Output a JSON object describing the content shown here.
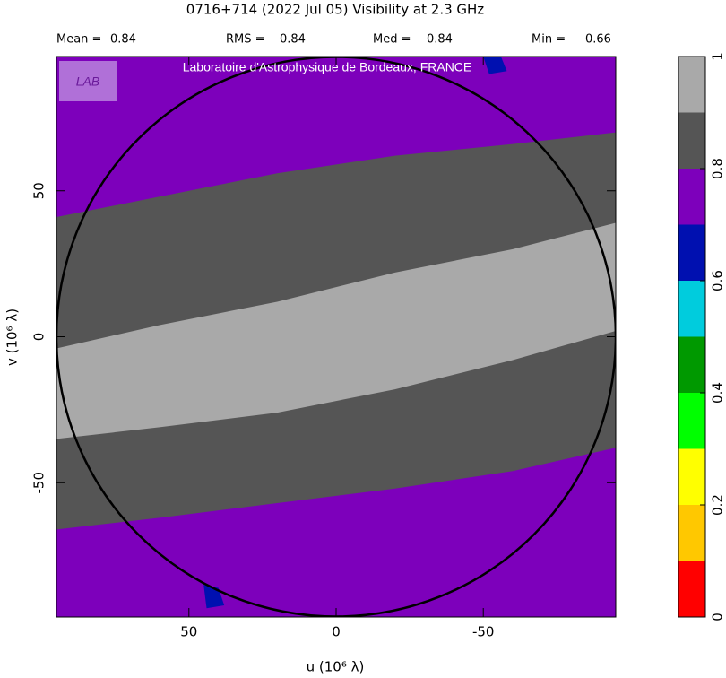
{
  "chart_data": {
    "type": "contour",
    "title": "0716+714   (2022 Jul 05)   Visibility at  2.3 GHz",
    "stats": [
      {
        "label": "Mean =",
        "value": 0.84
      },
      {
        "label": "RMS =",
        "value": 0.84
      },
      {
        "label": "Med =",
        "value": 0.84
      },
      {
        "label": "Min =",
        "value": 0.66
      }
    ],
    "watermark": "Laboratoire d'Astrophysique de Bordeaux, FRANCE",
    "logo": "LAB",
    "xlabel": "u  (10⁶ λ)",
    "ylabel": "v  (10⁶ λ)",
    "xlim": [
      95,
      -95
    ],
    "ylim": [
      -96,
      96
    ],
    "xticks": [
      50,
      0,
      -50
    ],
    "yticks": [
      -50,
      0,
      50
    ],
    "background_value": 0.75,
    "regions": [
      {
        "value": 0.85,
        "points": [
          [
            95,
            41
          ],
          [
            60,
            48
          ],
          [
            20,
            56
          ],
          [
            -20,
            62
          ],
          [
            -60,
            66
          ],
          [
            -95,
            70
          ],
          [
            -95,
            -38
          ],
          [
            -60,
            -46
          ],
          [
            -20,
            -52
          ],
          [
            20,
            -57
          ],
          [
            60,
            -62
          ],
          [
            95,
            -66
          ]
        ]
      },
      {
        "value": 0.95,
        "points": [
          [
            95,
            -4
          ],
          [
            60,
            4
          ],
          [
            20,
            12
          ],
          [
            -20,
            22
          ],
          [
            -60,
            30
          ],
          [
            -95,
            39
          ],
          [
            -95,
            2
          ],
          [
            -60,
            -8
          ],
          [
            -20,
            -18
          ],
          [
            20,
            -26
          ],
          [
            60,
            -31
          ],
          [
            95,
            -35
          ]
        ]
      },
      {
        "value": 0.65,
        "points": [
          [
            45,
            -85
          ],
          [
            40,
            -86
          ],
          [
            38,
            -92
          ],
          [
            44,
            -93
          ]
        ]
      },
      {
        "value": 0.65,
        "points": [
          [
            -52,
            90
          ],
          [
            -58,
            91
          ],
          [
            -56,
            96
          ],
          [
            -50,
            96
          ]
        ]
      }
    ],
    "colorbar": {
      "levels": [
        0,
        0.1,
        0.2,
        0.3,
        0.4,
        0.5,
        0.6,
        0.7,
        0.8,
        0.9,
        1
      ],
      "colors": [
        "#ff0000",
        "#ffc800",
        "#ffff00",
        "#00ff00",
        "#009900",
        "#00ccdd",
        "#0010b0",
        "#7d00bb",
        "#555555",
        "#a9a9a9"
      ],
      "ticks": [
        0,
        0.2,
        0.4,
        0.6,
        0.8,
        1
      ]
    }
  }
}
